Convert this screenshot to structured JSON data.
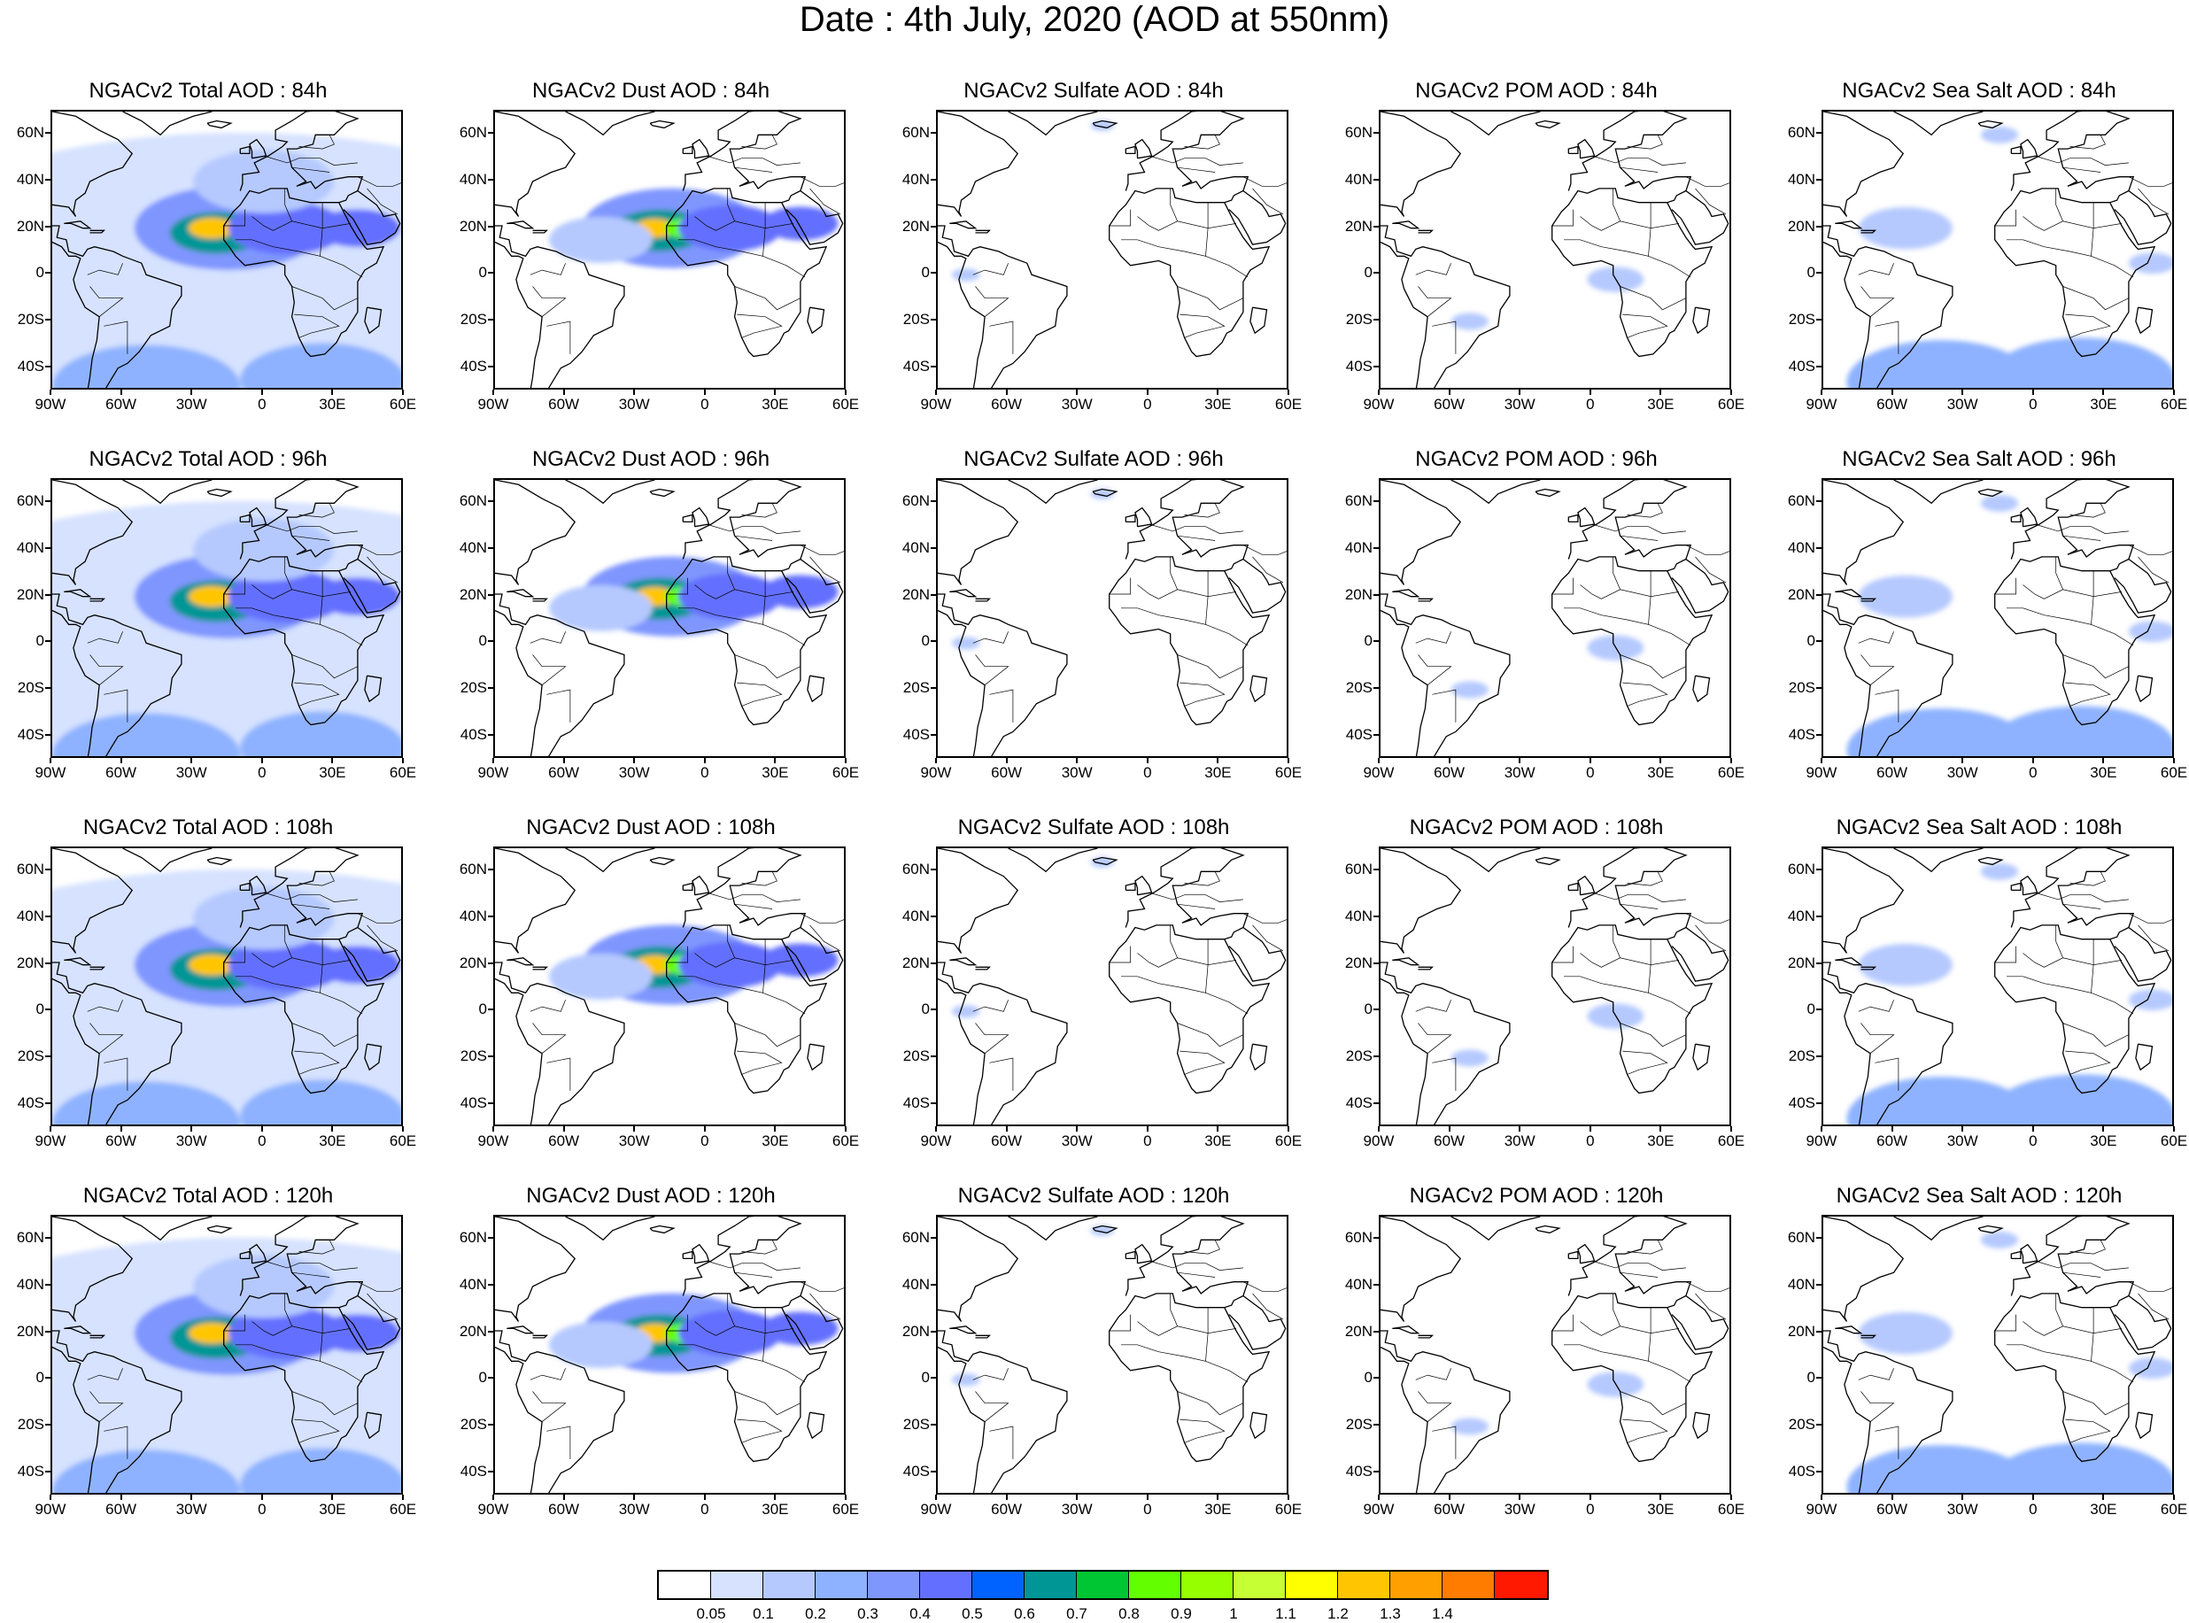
{
  "title": "Date : 4th July, 2020 (AOD at 550nm)",
  "panels": [
    {
      "title": "NGACv2 Total AOD : 84h",
      "species": "total",
      "hour": "84h"
    },
    {
      "title": "NGACv2 Dust AOD : 84h",
      "species": "dust",
      "hour": "84h"
    },
    {
      "title": "NGACv2 Sulfate AOD : 84h",
      "species": "sulfate",
      "hour": "84h"
    },
    {
      "title": "NGACv2 POM AOD : 84h",
      "species": "pom",
      "hour": "84h"
    },
    {
      "title": "NGACv2 Sea Salt AOD : 84h",
      "species": "seasalt",
      "hour": "84h"
    },
    {
      "title": "NGACv2 Total AOD : 96h",
      "species": "total",
      "hour": "96h"
    },
    {
      "title": "NGACv2 Dust AOD : 96h",
      "species": "dust",
      "hour": "96h"
    },
    {
      "title": "NGACv2 Sulfate AOD : 96h",
      "species": "sulfate",
      "hour": "96h"
    },
    {
      "title": "NGACv2 POM AOD : 96h",
      "species": "pom",
      "hour": "96h"
    },
    {
      "title": "NGACv2 Sea Salt AOD : 96h",
      "species": "seasalt",
      "hour": "96h"
    },
    {
      "title": "NGACv2 Total AOD : 108h",
      "species": "total",
      "hour": "108h"
    },
    {
      "title": "NGACv2 Dust AOD : 108h",
      "species": "dust",
      "hour": "108h"
    },
    {
      "title": "NGACv2 Sulfate AOD : 108h",
      "species": "sulfate",
      "hour": "108h"
    },
    {
      "title": "NGACv2 POM AOD : 108h",
      "species": "pom",
      "hour": "108h"
    },
    {
      "title": "NGACv2 Sea Salt AOD : 108h",
      "species": "seasalt",
      "hour": "108h"
    },
    {
      "title": "NGACv2 Total AOD : 120h",
      "species": "total",
      "hour": "120h"
    },
    {
      "title": "NGACv2 Dust AOD : 120h",
      "species": "dust",
      "hour": "120h"
    },
    {
      "title": "NGACv2 Sulfate AOD : 120h",
      "species": "sulfate",
      "hour": "120h"
    },
    {
      "title": "NGACv2 POM AOD : 120h",
      "species": "pom",
      "hour": "120h"
    },
    {
      "title": "NGACv2 Sea Salt  AOD : 120h",
      "species": "seasalt",
      "hour": "120h"
    }
  ],
  "axes": {
    "x_labels": [
      "90W",
      "60W",
      "30W",
      "0",
      "30E",
      "60E"
    ],
    "y_labels": [
      "60N",
      "40N",
      "20N",
      "0",
      "20S",
      "40S"
    ],
    "lon_range": [
      -90,
      60
    ],
    "lat_range": [
      -50,
      70
    ]
  },
  "colorbar": {
    "labels": [
      "0.05",
      "0.1",
      "0.2",
      "0.3",
      "0.4",
      "0.5",
      "0.6",
      "0.7",
      "0.8",
      "0.9",
      "1",
      "1.1",
      "1.2",
      "1.3",
      "1.4"
    ],
    "colors": [
      "#ffffff",
      "#d6e2ff",
      "#b5c9ff",
      "#8eb2ff",
      "#7f96ff",
      "#6370ff",
      "#0063ff",
      "#009696",
      "#00c633",
      "#63ff00",
      "#96ff00",
      "#c6ff33",
      "#ffff00",
      "#ffc600",
      "#ffa000",
      "#ff7c00",
      "#ff1900"
    ]
  }
}
